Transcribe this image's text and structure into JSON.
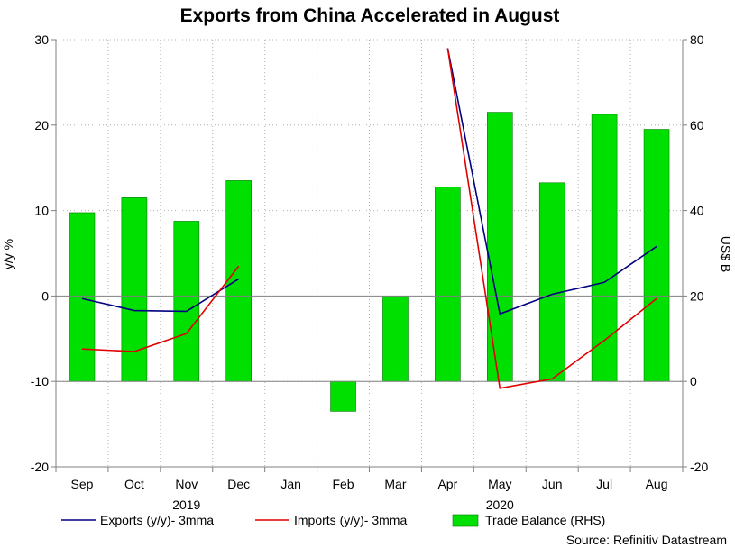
{
  "chart_data": {
    "type": "bar+line",
    "title": "Exports from China Accelerated in August",
    "ylabel_left": "y/y %",
    "ylabel_right": "US$ B",
    "ylim_left": [
      -20,
      30
    ],
    "ylim_right": [
      -20,
      80
    ],
    "yticks_left": [
      -20,
      -10,
      0,
      10,
      20,
      30
    ],
    "yticks_right": [
      -20,
      0,
      20,
      40,
      60,
      80
    ],
    "categories": [
      "Sep",
      "Oct",
      "Nov",
      "Dec",
      "Jan",
      "Feb",
      "Mar",
      "Apr",
      "May",
      "Jun",
      "Jul",
      "Aug"
    ],
    "year_labels": [
      {
        "label": "2019",
        "center_category": 2
      },
      {
        "label": "2020",
        "center_category": 8
      }
    ],
    "grid": true,
    "series": [
      {
        "name": "Exports (y/y)- 3mma",
        "kind": "line",
        "axis": "left",
        "color": "#000080",
        "values": [
          -0.3,
          -1.7,
          -1.8,
          2.0,
          null,
          null,
          null,
          29.0,
          -2.1,
          0.2,
          1.6,
          5.8
        ]
      },
      {
        "name": "Imports (y/y)- 3mma",
        "kind": "line",
        "axis": "left",
        "color": "#e00000",
        "values": [
          -6.2,
          -6.5,
          -4.4,
          3.5,
          null,
          null,
          null,
          29.0,
          -10.8,
          -9.7,
          -5.2,
          -0.3
        ]
      },
      {
        "name": "Trade Balance (RHS)",
        "kind": "bar",
        "axis": "right",
        "color": "#00e000",
        "values": [
          39.5,
          43.0,
          37.5,
          47.0,
          null,
          -7.0,
          20.0,
          45.5,
          63.0,
          46.5,
          62.5,
          59.0
        ]
      }
    ],
    "legend_position": "bottom",
    "source": "Source: Refinitiv Datastream"
  }
}
